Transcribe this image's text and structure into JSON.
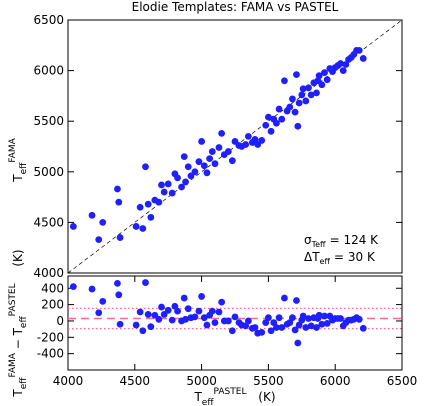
{
  "chart_data": [
    {
      "type": "scatter",
      "title": "Elodie Templates: FAMA vs PASTEL",
      "ylabel": {
        "text": "T",
        "sub": "eff",
        "sup": "FAMA",
        "unit": "(K)"
      },
      "xlim": [
        4000,
        6500
      ],
      "ylim": [
        4000,
        6500
      ],
      "yticks": [
        4000,
        4500,
        5000,
        5500,
        6000,
        6500
      ],
      "one_to_one": true,
      "color": "#1f1fff",
      "x": [
        4040,
        4180,
        4230,
        4260,
        4370,
        4380,
        4390,
        4510,
        4540,
        4560,
        4580,
        4600,
        4620,
        4650,
        4680,
        4700,
        4720,
        4750,
        4780,
        4800,
        4820,
        4850,
        4870,
        4880,
        4900,
        4920,
        4950,
        4980,
        5000,
        5020,
        5040,
        5060,
        5080,
        5100,
        5130,
        5150,
        5170,
        5200,
        5230,
        5250,
        5280,
        5300,
        5330,
        5350,
        5380,
        5400,
        5420,
        5450,
        5480,
        5500,
        5520,
        5540,
        5560,
        5580,
        5600,
        5620,
        5640,
        5660,
        5680,
        5700,
        5710,
        5720,
        5730,
        5750,
        5760,
        5780,
        5800,
        5820,
        5840,
        5860,
        5870,
        5880,
        5900,
        5920,
        5940,
        5960,
        5980,
        6000,
        6020,
        6040,
        6060,
        6080,
        6100,
        6120,
        6140,
        6160,
        6180,
        6210
      ],
      "values": [
        4460,
        4570,
        4330,
        4500,
        4830,
        4700,
        4350,
        4460,
        4650,
        4440,
        5050,
        4680,
        4550,
        4720,
        4700,
        4870,
        4800,
        4880,
        4790,
        4980,
        4940,
        4850,
        5150,
        4900,
        5050,
        4960,
        5000,
        5100,
        5300,
        5060,
        4990,
        5130,
        5200,
        5080,
        5240,
        5380,
        5170,
        5200,
        5110,
        5300,
        5260,
        5250,
        5270,
        5350,
        5290,
        5320,
        5270,
        5310,
        5460,
        5540,
        5400,
        5520,
        5480,
        5620,
        5520,
        5900,
        5600,
        5640,
        5720,
        5590,
        5960,
        5450,
        5680,
        5760,
        5820,
        5700,
        5830,
        5760,
        5880,
        5780,
        5900,
        5950,
        5860,
        5980,
        5910,
        6020,
        5990,
        6030,
        6050,
        6070,
        6000,
        6060,
        6110,
        6130,
        6160,
        6200,
        6200,
        6120
      ],
      "annotations": [
        {
          "symbol": "σ",
          "sub": "Teff",
          "text": "= 124 K"
        },
        {
          "symbol": "ΔT",
          "sub": "eff",
          "text": "= 30 K"
        }
      ]
    },
    {
      "type": "scatter",
      "ylabel": [
        {
          "text": "T",
          "sub": "eff",
          "sup": "FAMA"
        },
        {
          "text": "− T",
          "sub": "eff",
          "sup": "PASTEL"
        }
      ],
      "xlabel": {
        "text": "T",
        "sub": "eff",
        "sup": "PASTEL",
        "unit": "(K)"
      },
      "xlim": [
        4000,
        6500
      ],
      "ylim": [
        -600,
        550
      ],
      "xticks": [
        4000,
        4500,
        5000,
        5500,
        6000,
        6500
      ],
      "yticks": [
        -400,
        -200,
        0,
        200,
        400
      ],
      "offset": 30,
      "sigma": 124,
      "color": "#1f1fff",
      "line_color": "#ff6699",
      "x": [
        4040,
        4180,
        4230,
        4260,
        4370,
        4380,
        4390,
        4510,
        4540,
        4560,
        4580,
        4600,
        4620,
        4650,
        4680,
        4700,
        4720,
        4750,
        4780,
        4800,
        4820,
        4850,
        4870,
        4880,
        4900,
        4920,
        4950,
        4980,
        5000,
        5020,
        5040,
        5060,
        5080,
        5100,
        5130,
        5150,
        5170,
        5200,
        5230,
        5250,
        5280,
        5300,
        5330,
        5350,
        5380,
        5400,
        5420,
        5450,
        5480,
        5500,
        5520,
        5540,
        5560,
        5580,
        5600,
        5620,
        5640,
        5660,
        5680,
        5700,
        5710,
        5720,
        5730,
        5750,
        5760,
        5780,
        5800,
        5820,
        5840,
        5860,
        5870,
        5880,
        5900,
        5920,
        5940,
        5960,
        5980,
        6000,
        6020,
        6040,
        6060,
        6080,
        6100,
        6120,
        6140,
        6160,
        6180,
        6210
      ],
      "values": [
        420,
        390,
        100,
        240,
        460,
        320,
        -40,
        -50,
        110,
        -120,
        470,
        80,
        -70,
        70,
        20,
        170,
        80,
        130,
        10,
        180,
        120,
        0,
        280,
        20,
        150,
        40,
        50,
        120,
        300,
        40,
        -50,
        70,
        120,
        -20,
        110,
        230,
        0,
        0,
        -120,
        50,
        -20,
        -50,
        -60,
        0,
        -90,
        -80,
        -150,
        -140,
        -20,
        40,
        -120,
        -20,
        -80,
        40,
        -80,
        280,
        -40,
        -20,
        40,
        -110,
        250,
        -270,
        -50,
        10,
        60,
        -80,
        30,
        -60,
        40,
        -80,
        30,
        70,
        -40,
        60,
        -30,
        60,
        10,
        30,
        30,
        30,
        -60,
        -20,
        10,
        10,
        20,
        40,
        20,
        -90
      ]
    }
  ]
}
